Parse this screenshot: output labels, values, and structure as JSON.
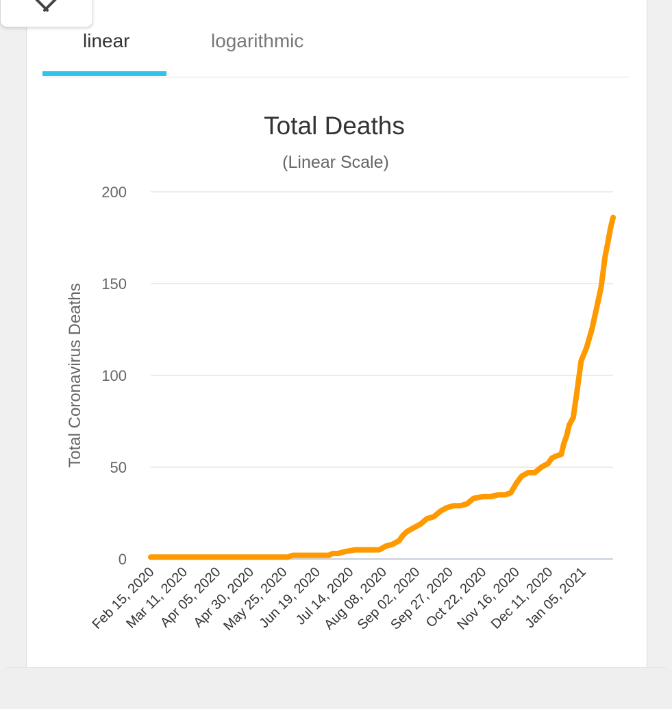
{
  "tabs": [
    {
      "label": "linear",
      "active": true
    },
    {
      "label": "logarithmic",
      "active": false
    }
  ],
  "icons": {
    "close": "close-icon"
  },
  "colors": {
    "accent": "#2ec4ee",
    "series": "#ff9900",
    "grid": "#e6e6e6"
  },
  "chart_data": {
    "type": "line",
    "title": "Total Deaths",
    "subtitle": "(Linear Scale)",
    "ylabel": "Total Coronavirus Deaths",
    "ylim": [
      0,
      200
    ],
    "yticks": [
      0,
      50,
      100,
      150,
      200
    ],
    "grid": true,
    "legend": "none",
    "xlim": [
      "2020-02-15",
      "2021-01-28"
    ],
    "xtick_labels": [
      "Feb 15, 2020",
      "Mar 11, 2020",
      "Apr 05, 2020",
      "Apr 30, 2020",
      "May 25, 2020",
      "Jun 19, 2020",
      "Jul 14, 2020",
      "Aug 08, 2020",
      "Sep 02, 2020",
      "Sep 27, 2020",
      "Oct 22, 2020",
      "Nov 16, 2020",
      "Dec 11, 2020",
      "Jan 05, 2021"
    ],
    "xtick_dates": [
      "2020-02-15",
      "2020-03-11",
      "2020-04-05",
      "2020-04-30",
      "2020-05-25",
      "2020-06-19",
      "2020-07-14",
      "2020-08-08",
      "2020-09-02",
      "2020-09-27",
      "2020-10-22",
      "2020-11-16",
      "2020-12-11",
      "2021-01-05"
    ],
    "series": [
      {
        "x": [
          "2020-02-15",
          "2020-04-01",
          "2020-05-28",
          "2020-06-01",
          "2020-06-28",
          "2020-07-01",
          "2020-07-05",
          "2020-07-10",
          "2020-07-18",
          "2020-08-05",
          "2020-08-10",
          "2020-08-15",
          "2020-08-20",
          "2020-08-23",
          "2020-08-26",
          "2020-08-31",
          "2020-09-05",
          "2020-09-10",
          "2020-09-15",
          "2020-09-20",
          "2020-09-25",
          "2020-09-30",
          "2020-10-05",
          "2020-10-10",
          "2020-10-15",
          "2020-10-22",
          "2020-10-28",
          "2020-11-03",
          "2020-11-08",
          "2020-11-12",
          "2020-11-16",
          "2020-11-20",
          "2020-11-25",
          "2020-11-30",
          "2020-12-05",
          "2020-12-10",
          "2020-12-13",
          "2020-12-16",
          "2020-12-20",
          "2020-12-22",
          "2020-12-24",
          "2020-12-26",
          "2020-12-29",
          "2021-01-01",
          "2021-01-04",
          "2021-01-08",
          "2021-01-12",
          "2021-01-16",
          "2021-01-19",
          "2021-01-22",
          "2021-01-24",
          "2021-01-26",
          "2021-01-28"
        ],
        "y": [
          1,
          1,
          1,
          2,
          2,
          3,
          3,
          4,
          5,
          5,
          7,
          8,
          10,
          13,
          15,
          17,
          19,
          22,
          23,
          26,
          28,
          29,
          29,
          30,
          33,
          34,
          34,
          35,
          35,
          36,
          41,
          45,
          47,
          47,
          50,
          52,
          55,
          56,
          57,
          63,
          67,
          73,
          77,
          92,
          108,
          115,
          125,
          138,
          148,
          165,
          172,
          180,
          186
        ]
      }
    ]
  }
}
